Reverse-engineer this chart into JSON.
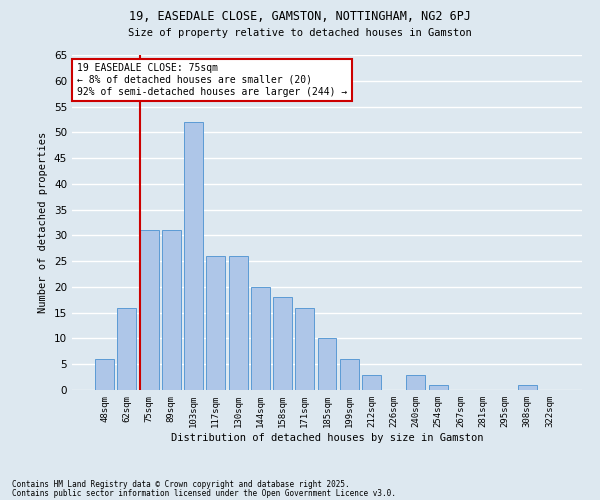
{
  "title1": "19, EASEDALE CLOSE, GAMSTON, NOTTINGHAM, NG2 6PJ",
  "title2": "Size of property relative to detached houses in Gamston",
  "xlabel": "Distribution of detached houses by size in Gamston",
  "ylabel": "Number of detached properties",
  "categories": [
    "48sqm",
    "62sqm",
    "75sqm",
    "89sqm",
    "103sqm",
    "117sqm",
    "130sqm",
    "144sqm",
    "158sqm",
    "171sqm",
    "185sqm",
    "199sqm",
    "212sqm",
    "226sqm",
    "240sqm",
    "254sqm",
    "267sqm",
    "281sqm",
    "295sqm",
    "308sqm",
    "322sqm"
  ],
  "values": [
    6,
    16,
    31,
    31,
    52,
    26,
    26,
    20,
    18,
    16,
    10,
    6,
    3,
    0,
    3,
    1,
    0,
    0,
    0,
    1,
    0
  ],
  "bar_color": "#aec6e8",
  "bar_edge_color": "#5b9bd5",
  "vline_index": 2,
  "vline_color": "#cc0000",
  "annotation_text": "19 EASEDALE CLOSE: 75sqm\n← 8% of detached houses are smaller (20)\n92% of semi-detached houses are larger (244) →",
  "annotation_box_color": "#ffffff",
  "annotation_edge_color": "#cc0000",
  "ylim": [
    0,
    65
  ],
  "yticks": [
    0,
    5,
    10,
    15,
    20,
    25,
    30,
    35,
    40,
    45,
    50,
    55,
    60,
    65
  ],
  "footer1": "Contains HM Land Registry data © Crown copyright and database right 2025.",
  "footer2": "Contains public sector information licensed under the Open Government Licence v3.0.",
  "bg_color": "#dde8f0",
  "grid_color": "#ffffff"
}
